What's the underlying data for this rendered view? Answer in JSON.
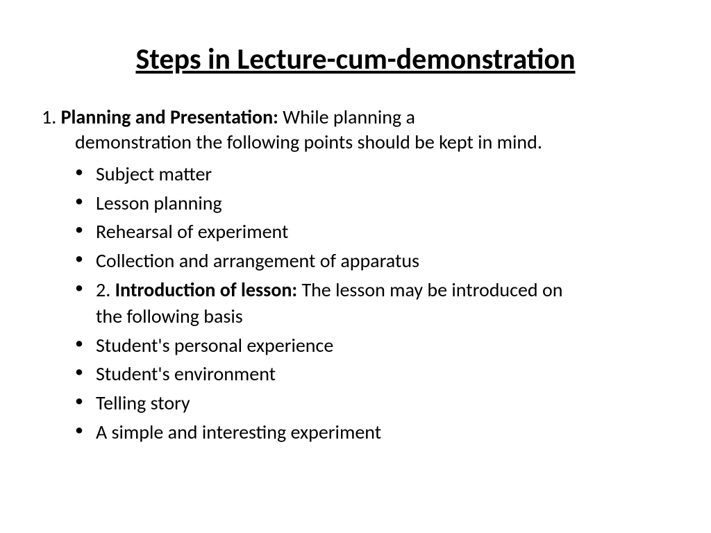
{
  "slide": {
    "title": "Steps in Lecture-cum-demonstration",
    "section1": {
      "number": "1.",
      "heading": "Planning and Presentation:",
      "tail_line1": "  While planning a",
      "tail_line2": "demonstration the following points should be kept in mind."
    },
    "bullets1": [
      "Subject matter",
      "Lesson planning",
      "Rehearsal of experiment",
      "Collection and arrangement of apparatus"
    ],
    "section2": {
      "prefix": "2.  ",
      "heading": "Introduction of lesson:",
      "tail_line1": " The lesson may be introduced on",
      "tail_line2": "the following basis"
    },
    "bullets2": [
      "Student's personal experience",
      "Student's environment",
      "Telling story",
      "A simple and interesting experiment"
    ],
    "colors": {
      "background": "#ffffff",
      "text": "#000000"
    },
    "typography": {
      "title_fontsize": 42,
      "body_fontsize": 28,
      "font_family": "Calibri"
    }
  }
}
